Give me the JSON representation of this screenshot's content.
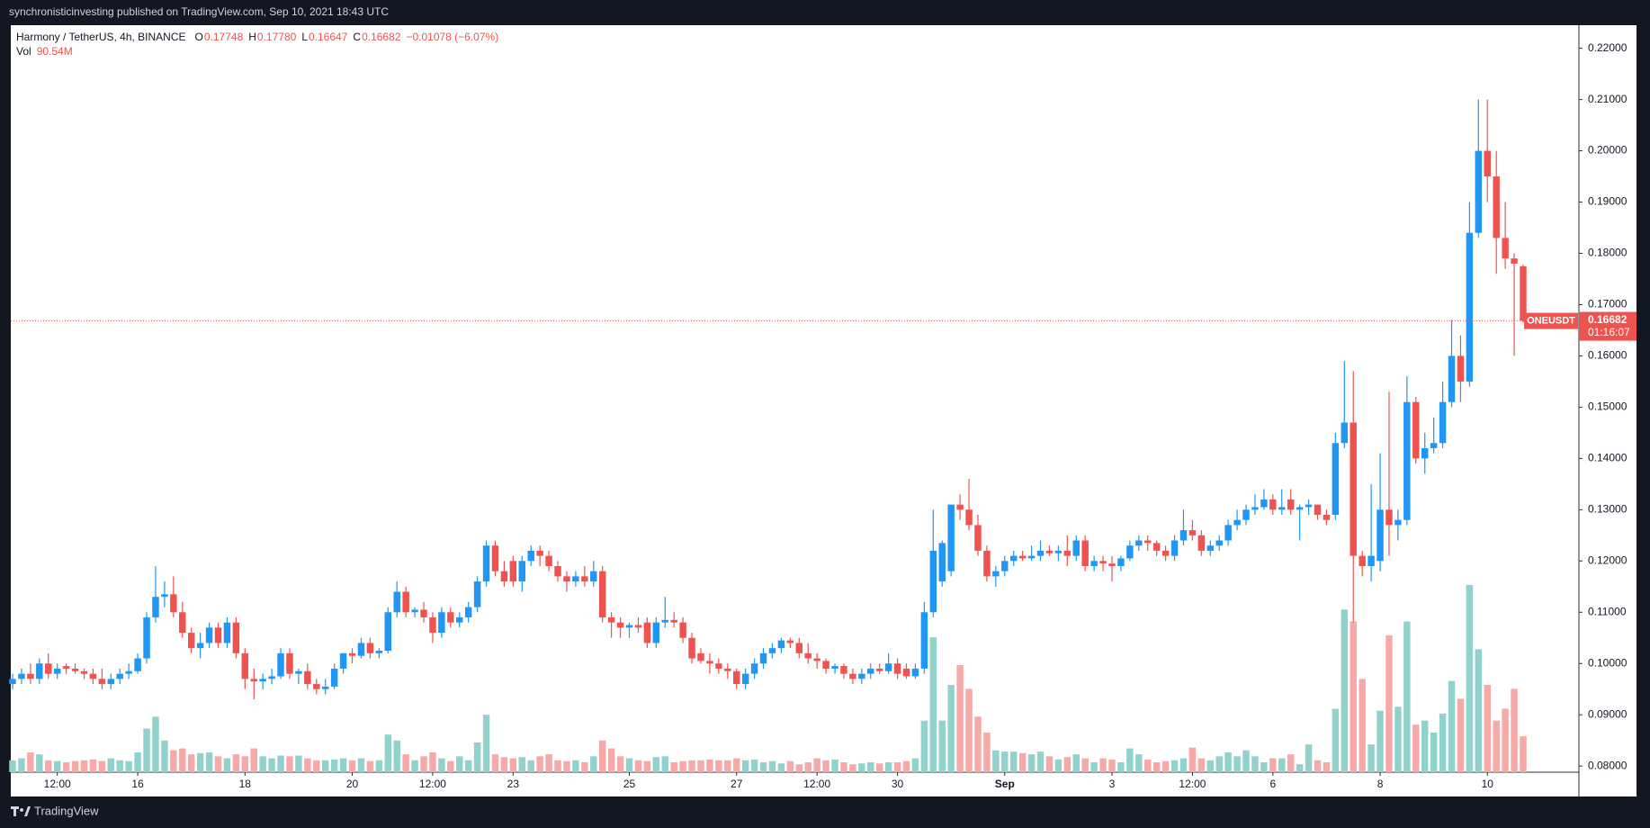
{
  "header": {
    "published": "synchronisticinvesting published on TradingView.com, Sep 10, 2021 18:43 UTC",
    "brand": "TradingView"
  },
  "chart_data": {
    "type": "candlestick",
    "symbol_line": "Harmony / TetherUS, 4h, BINANCE",
    "legend": [
      {
        "label": "O",
        "value": "0.17748"
      },
      {
        "label": "H",
        "value": "0.17780"
      },
      {
        "label": "L",
        "value": "0.16647"
      },
      {
        "label": "C",
        "value": "0.16682"
      }
    ],
    "change": "−0.01078 (−6.07%)",
    "volume_name": "Vol",
    "volume_last_label": "90.54M",
    "ticker_tag": "ONEUSDT",
    "countdown": "01:16:07",
    "up_color": "#2196f3",
    "down_color": "#ef5350",
    "volume_up_color": "#92d2cc",
    "volume_down_color": "#f7a9a7",
    "ylim": [
      0.0788,
      0.2245
    ],
    "yticks": [
      {
        "value": 0.08,
        "label": "0.08000"
      },
      {
        "value": 0.09,
        "label": "0.09000"
      },
      {
        "value": 0.1,
        "label": "0.10000"
      },
      {
        "value": 0.11,
        "label": "0.11000"
      },
      {
        "value": 0.12,
        "label": "0.12000"
      },
      {
        "value": 0.13,
        "label": "0.13000"
      },
      {
        "value": 0.14,
        "label": "0.14000"
      },
      {
        "value": 0.15,
        "label": "0.15000"
      },
      {
        "value": 0.16,
        "label": "0.16000"
      },
      {
        "value": 0.17,
        "label": "0.17000"
      },
      {
        "value": 0.18,
        "label": "0.18000"
      },
      {
        "value": 0.19,
        "label": "0.19000"
      },
      {
        "value": 0.2,
        "label": "0.20000"
      },
      {
        "value": 0.21,
        "label": "0.21000"
      },
      {
        "value": 0.22,
        "label": "0.22000"
      }
    ],
    "volume_lim": [
      0,
      1883
    ],
    "xticks": [
      {
        "value": 5,
        "label": "12:00"
      },
      {
        "value": 14,
        "label": "16"
      },
      {
        "value": 26,
        "label": "18"
      },
      {
        "value": 38,
        "label": "20"
      },
      {
        "value": 47,
        "label": "12:00"
      },
      {
        "value": 56,
        "label": "23"
      },
      {
        "value": 69,
        "label": "25"
      },
      {
        "value": 81,
        "label": "27"
      },
      {
        "value": 90,
        "label": "12:00"
      },
      {
        "value": 99,
        "label": "30"
      },
      {
        "value": 111,
        "label": "Sep",
        "bold": true
      },
      {
        "value": 123,
        "label": "3"
      },
      {
        "value": 132,
        "label": "12:00"
      },
      {
        "value": 141,
        "label": "6"
      },
      {
        "value": 153,
        "label": "8"
      },
      {
        "value": 165,
        "label": "10"
      }
    ],
    "candles": [
      [
        0.096,
        0.098,
        0.095,
        0.097
      ],
      [
        0.097,
        0.099,
        0.096,
        0.098
      ],
      [
        0.098,
        0.1,
        0.096,
        0.097
      ],
      [
        0.097,
        0.101,
        0.096,
        0.1
      ],
      [
        0.1,
        0.102,
        0.097,
        0.098
      ],
      [
        0.098,
        0.1,
        0.097,
        0.099
      ],
      [
        0.0995,
        0.1,
        0.098,
        0.099
      ],
      [
        0.099,
        0.1,
        0.098,
        0.0985
      ],
      [
        0.0985,
        0.099,
        0.097,
        0.098
      ],
      [
        0.098,
        0.099,
        0.096,
        0.097
      ],
      [
        0.097,
        0.099,
        0.095,
        0.096
      ],
      [
        0.096,
        0.098,
        0.095,
        0.097
      ],
      [
        0.097,
        0.099,
        0.096,
        0.098
      ],
      [
        0.098,
        0.1,
        0.097,
        0.0985
      ],
      [
        0.0985,
        0.102,
        0.098,
        0.101
      ],
      [
        0.101,
        0.11,
        0.1,
        0.109
      ],
      [
        0.109,
        0.119,
        0.108,
        0.113
      ],
      [
        0.113,
        0.116,
        0.111,
        0.1135
      ],
      [
        0.1135,
        0.117,
        0.109,
        0.11
      ],
      [
        0.11,
        0.112,
        0.105,
        0.106
      ],
      [
        0.106,
        0.107,
        0.102,
        0.103
      ],
      [
        0.103,
        0.106,
        0.101,
        0.104
      ],
      [
        0.104,
        0.108,
        0.103,
        0.107
      ],
      [
        0.107,
        0.108,
        0.103,
        0.104
      ],
      [
        0.104,
        0.109,
        0.103,
        0.108
      ],
      [
        0.108,
        0.109,
        0.101,
        0.102
      ],
      [
        0.102,
        0.103,
        0.095,
        0.097
      ],
      [
        0.097,
        0.099,
        0.093,
        0.0965
      ],
      [
        0.0965,
        0.098,
        0.095,
        0.097
      ],
      [
        0.097,
        0.099,
        0.096,
        0.0975
      ],
      [
        0.0975,
        0.103,
        0.097,
        0.102
      ],
      [
        0.102,
        0.103,
        0.097,
        0.098
      ],
      [
        0.098,
        0.099,
        0.096,
        0.0985
      ],
      [
        0.0985,
        0.1,
        0.095,
        0.096
      ],
      [
        0.096,
        0.097,
        0.094,
        0.095
      ],
      [
        0.095,
        0.097,
        0.094,
        0.0955
      ],
      [
        0.0955,
        0.1,
        0.095,
        0.099
      ],
      [
        0.099,
        0.102,
        0.098,
        0.102
      ],
      [
        0.102,
        0.103,
        0.1,
        0.1015
      ],
      [
        0.1015,
        0.105,
        0.101,
        0.104
      ],
      [
        0.104,
        0.105,
        0.101,
        0.102
      ],
      [
        0.102,
        0.103,
        0.101,
        0.1025
      ],
      [
        0.1025,
        0.111,
        0.102,
        0.11
      ],
      [
        0.11,
        0.116,
        0.109,
        0.114
      ],
      [
        0.114,
        0.115,
        0.109,
        0.11
      ],
      [
        0.11,
        0.111,
        0.109,
        0.1105
      ],
      [
        0.1105,
        0.112,
        0.108,
        0.109
      ],
      [
        0.109,
        0.11,
        0.104,
        0.106
      ],
      [
        0.106,
        0.111,
        0.105,
        0.11
      ],
      [
        0.11,
        0.111,
        0.107,
        0.108
      ],
      [
        0.108,
        0.11,
        0.107,
        0.109
      ],
      [
        0.109,
        0.112,
        0.108,
        0.111
      ],
      [
        0.111,
        0.117,
        0.11,
        0.116
      ],
      [
        0.116,
        0.124,
        0.115,
        0.123
      ],
      [
        0.123,
        0.124,
        0.117,
        0.118
      ],
      [
        0.118,
        0.12,
        0.115,
        0.116
      ],
      [
        0.12,
        0.121,
        0.115,
        0.116
      ],
      [
        0.116,
        0.121,
        0.114,
        0.12
      ],
      [
        0.12,
        0.123,
        0.119,
        0.122
      ],
      [
        0.122,
        0.123,
        0.119,
        0.121
      ],
      [
        0.121,
        0.122,
        0.118,
        0.119
      ],
      [
        0.119,
        0.12,
        0.116,
        0.117
      ],
      [
        0.117,
        0.118,
        0.114,
        0.116
      ],
      [
        0.116,
        0.118,
        0.115,
        0.117
      ],
      [
        0.117,
        0.119,
        0.115,
        0.116
      ],
      [
        0.116,
        0.12,
        0.115,
        0.118
      ],
      [
        0.118,
        0.119,
        0.108,
        0.109
      ],
      [
        0.109,
        0.11,
        0.105,
        0.108
      ],
      [
        0.108,
        0.109,
        0.105,
        0.107
      ],
      [
        0.107,
        0.108,
        0.105,
        0.1075
      ],
      [
        0.1075,
        0.109,
        0.106,
        0.107
      ],
      [
        0.108,
        0.109,
        0.103,
        0.104
      ],
      [
        0.104,
        0.109,
        0.103,
        0.108
      ],
      [
        0.108,
        0.113,
        0.107,
        0.1085
      ],
      [
        0.1085,
        0.11,
        0.107,
        0.108
      ],
      [
        0.108,
        0.109,
        0.104,
        0.105
      ],
      [
        0.105,
        0.106,
        0.1,
        0.101
      ],
      [
        0.102,
        0.103,
        0.1,
        0.1005
      ],
      [
        0.1005,
        0.102,
        0.098,
        0.1
      ],
      [
        0.1,
        0.101,
        0.098,
        0.099
      ],
      [
        0.099,
        0.1,
        0.097,
        0.0985
      ],
      [
        0.0985,
        0.099,
        0.095,
        0.096
      ],
      [
        0.096,
        0.099,
        0.095,
        0.098
      ],
      [
        0.098,
        0.101,
        0.097,
        0.1
      ],
      [
        0.1,
        0.103,
        0.099,
        0.102
      ],
      [
        0.102,
        0.104,
        0.101,
        0.103
      ],
      [
        0.103,
        0.105,
        0.102,
        0.1045
      ],
      [
        0.1045,
        0.105,
        0.103,
        0.104
      ],
      [
        0.104,
        0.105,
        0.101,
        0.102
      ],
      [
        0.102,
        0.104,
        0.1,
        0.101
      ],
      [
        0.101,
        0.102,
        0.099,
        0.1005
      ],
      [
        0.1005,
        0.101,
        0.098,
        0.099
      ],
      [
        0.099,
        0.1,
        0.098,
        0.0995
      ],
      [
        0.0995,
        0.1,
        0.097,
        0.098
      ],
      [
        0.098,
        0.099,
        0.096,
        0.097
      ],
      [
        0.097,
        0.099,
        0.096,
        0.098
      ],
      [
        0.098,
        0.1,
        0.097,
        0.099
      ],
      [
        0.099,
        0.1,
        0.098,
        0.0985
      ],
      [
        0.0985,
        0.102,
        0.098,
        0.1
      ],
      [
        0.1,
        0.101,
        0.097,
        0.098
      ],
      [
        0.099,
        0.1,
        0.097,
        0.0975
      ],
      [
        0.0975,
        0.1,
        0.097,
        0.099
      ],
      [
        0.099,
        0.112,
        0.098,
        0.11
      ],
      [
        0.11,
        0.13,
        0.109,
        0.122
      ],
      [
        0.116,
        0.124,
        0.115,
        0.1235
      ],
      [
        0.118,
        0.131,
        0.117,
        0.131
      ],
      [
        0.131,
        0.133,
        0.128,
        0.13
      ],
      [
        0.13,
        0.136,
        0.126,
        0.127
      ],
      [
        0.127,
        0.129,
        0.121,
        0.122
      ],
      [
        0.122,
        0.123,
        0.116,
        0.117
      ],
      [
        0.117,
        0.119,
        0.115,
        0.118
      ],
      [
        0.118,
        0.121,
        0.117,
        0.12
      ],
      [
        0.12,
        0.122,
        0.119,
        0.121
      ],
      [
        0.121,
        0.122,
        0.12,
        0.1205
      ],
      [
        0.1205,
        0.123,
        0.12,
        0.121
      ],
      [
        0.121,
        0.124,
        0.12,
        0.122
      ],
      [
        0.122,
        0.123,
        0.121,
        0.1215
      ],
      [
        0.1215,
        0.123,
        0.12,
        0.122
      ],
      [
        0.122,
        0.125,
        0.119,
        0.121
      ],
      [
        0.121,
        0.125,
        0.12,
        0.124
      ],
      [
        0.124,
        0.125,
        0.118,
        0.119
      ],
      [
        0.119,
        0.121,
        0.118,
        0.12
      ],
      [
        0.12,
        0.121,
        0.118,
        0.1195
      ],
      [
        0.1195,
        0.121,
        0.116,
        0.119
      ],
      [
        0.119,
        0.121,
        0.118,
        0.1205
      ],
      [
        0.1205,
        0.124,
        0.12,
        0.123
      ],
      [
        0.123,
        0.125,
        0.122,
        0.124
      ],
      [
        0.124,
        0.125,
        0.122,
        0.1235
      ],
      [
        0.1235,
        0.124,
        0.121,
        0.122
      ],
      [
        0.122,
        0.123,
        0.12,
        0.121
      ],
      [
        0.121,
        0.125,
        0.12,
        0.124
      ],
      [
        0.124,
        0.13,
        0.123,
        0.126
      ],
      [
        0.126,
        0.128,
        0.124,
        0.125
      ],
      [
        0.125,
        0.126,
        0.121,
        0.122
      ],
      [
        0.122,
        0.124,
        0.121,
        0.123
      ],
      [
        0.123,
        0.125,
        0.122,
        0.124
      ],
      [
        0.124,
        0.128,
        0.123,
        0.127
      ],
      [
        0.127,
        0.13,
        0.126,
        0.128
      ],
      [
        0.128,
        0.131,
        0.127,
        0.13
      ],
      [
        0.13,
        0.133,
        0.129,
        0.1305
      ],
      [
        0.1305,
        0.134,
        0.13,
        0.132
      ],
      [
        0.132,
        0.133,
        0.129,
        0.13
      ],
      [
        0.13,
        0.134,
        0.129,
        0.1305
      ],
      [
        0.132,
        0.134,
        0.129,
        0.13
      ],
      [
        0.13,
        0.131,
        0.124,
        0.1305
      ],
      [
        0.1305,
        0.132,
        0.129,
        0.131
      ],
      [
        0.131,
        0.131,
        0.128,
        0.129
      ],
      [
        0.129,
        0.13,
        0.127,
        0.128
      ],
      [
        0.129,
        0.145,
        0.128,
        0.143
      ],
      [
        0.143,
        0.159,
        0.142,
        0.147
      ],
      [
        0.147,
        0.157,
        0.108,
        0.121
      ],
      [
        0.121,
        0.122,
        0.117,
        0.119
      ],
      [
        0.119,
        0.135,
        0.116,
        0.121
      ],
      [
        0.12,
        0.141,
        0.118,
        0.13
      ],
      [
        0.13,
        0.153,
        0.121,
        0.127
      ],
      [
        0.127,
        0.13,
        0.124,
        0.128
      ],
      [
        0.128,
        0.156,
        0.127,
        0.151
      ],
      [
        0.151,
        0.152,
        0.139,
        0.14
      ],
      [
        0.14,
        0.145,
        0.137,
        0.142
      ],
      [
        0.142,
        0.148,
        0.141,
        0.143
      ],
      [
        0.143,
        0.155,
        0.142,
        0.151
      ],
      [
        0.151,
        0.167,
        0.15,
        0.16
      ],
      [
        0.16,
        0.164,
        0.151,
        0.155
      ],
      [
        0.155,
        0.19,
        0.154,
        0.184
      ],
      [
        0.184,
        0.21,
        0.183,
        0.2
      ],
      [
        0.2,
        0.21,
        0.19,
        0.195
      ],
      [
        0.195,
        0.2,
        0.176,
        0.183
      ],
      [
        0.183,
        0.19,
        0.177,
        0.179
      ],
      [
        0.179,
        0.18,
        0.16,
        0.178
      ],
      [
        0.17748,
        0.1778,
        0.16647,
        0.16682
      ]
    ],
    "volumes": [
      30,
      35,
      50,
      45,
      30,
      28,
      25,
      28,
      30,
      32,
      28,
      35,
      30,
      28,
      50,
      110,
      140,
      80,
      55,
      60,
      45,
      48,
      50,
      40,
      35,
      45,
      40,
      60,
      40,
      35,
      42,
      40,
      42,
      35,
      30,
      30,
      32,
      35,
      30,
      35,
      28,
      30,
      95,
      80,
      45,
      30,
      40,
      50,
      35,
      28,
      40,
      30,
      75,
      145,
      45,
      38,
      35,
      38,
      30,
      40,
      45,
      30,
      28,
      30,
      25,
      40,
      80,
      60,
      40,
      35,
      30,
      28,
      38,
      40,
      25,
      28,
      30,
      30,
      32,
      30,
      30,
      35,
      30,
      32,
      25,
      28,
      22,
      28,
      20,
      25,
      35,
      30,
      32,
      25,
      20,
      22,
      25,
      22,
      25,
      25,
      28,
      35,
      130,
      340,
      130,
      220,
      270,
      210,
      140,
      100,
      55,
      52,
      52,
      48,
      45,
      52,
      40,
      32,
      38,
      45,
      35,
      25,
      35,
      32,
      25,
      60,
      45,
      32,
      25,
      28,
      30,
      35,
      62,
      35,
      30,
      40,
      50,
      40,
      55,
      40,
      25,
      35,
      35,
      45,
      20,
      70,
      30,
      25,
      160,
      410,
      380,
      235,
      70,
      155,
      345,
      165,
      380,
      120,
      130,
      100,
      148,
      230,
      185,
      472,
      310,
      220,
      130,
      160,
      210,
      90.54
    ]
  }
}
